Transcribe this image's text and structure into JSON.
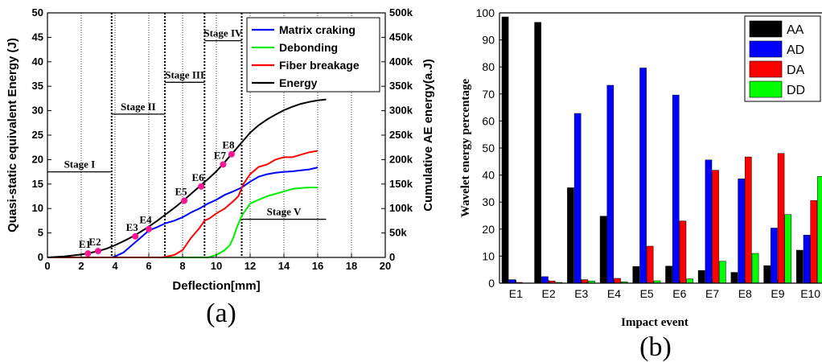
{
  "figure": {
    "panel_a_label": "(a)",
    "panel_b_label": "(b)"
  },
  "chart_data": [
    {
      "type": "line",
      "panel": "(a)",
      "xlabel": "Deflection[mm]",
      "ylabel": "Quasi-static equivalent Energy (J)",
      "y2label": "Cumulative AE energy(a.J)",
      "xlim": [
        0,
        20
      ],
      "ylim": [
        0,
        50
      ],
      "y2lim": [
        0,
        500000
      ],
      "x_ticks": [
        "0",
        "2",
        "4",
        "6",
        "8",
        "10",
        "12",
        "14",
        "16",
        "18",
        "20"
      ],
      "y_ticks": [
        "0",
        "5",
        "10",
        "15",
        "20",
        "25",
        "30",
        "35",
        "40",
        "45",
        "50"
      ],
      "y2_ticks": [
        "0",
        "50k",
        "100k",
        "150k",
        "200k",
        "250k",
        "300k",
        "350k",
        "400k",
        "450k",
        "500k"
      ],
      "legend_placement": "top-right",
      "series": [
        {
          "name": "Matrix craking",
          "color": "#0000ff",
          "axis": "right",
          "x": [
            0,
            3.8,
            4,
            4.5,
            5,
            5.5,
            6,
            6.5,
            7,
            7.5,
            8,
            8.5,
            9,
            9.5,
            10,
            10.5,
            11,
            11.5,
            12,
            12.5,
            13,
            13.5,
            14,
            14.5,
            15,
            15.5,
            16
          ],
          "y": [
            0,
            0,
            2000,
            10000,
            25000,
            40000,
            55000,
            62000,
            70000,
            75000,
            82000,
            92000,
            100000,
            110000,
            118000,
            128000,
            135000,
            143000,
            155000,
            165000,
            170000,
            173000,
            175000,
            176000,
            178000,
            180000,
            184000
          ]
        },
        {
          "name": "Debonding",
          "color": "#00ee00",
          "axis": "right",
          "x": [
            0,
            9.5,
            10,
            10.5,
            10.8,
            11,
            11.2,
            11.5,
            11.8,
            12,
            12.5,
            13,
            13.5,
            14,
            14.5,
            15,
            15.5,
            16
          ],
          "y": [
            0,
            0,
            5000,
            15000,
            25000,
            40000,
            60000,
            85000,
            100000,
            110000,
            118000,
            125000,
            130000,
            135000,
            140000,
            142000,
            143000,
            143000
          ]
        },
        {
          "name": "Fiber breakage",
          "color": "#ff0000",
          "axis": "right",
          "x": [
            0,
            6.8,
            7.5,
            8,
            8.5,
            9,
            9.3,
            9.6,
            10,
            10.5,
            11,
            11.3,
            11.6,
            12,
            12.5,
            13,
            13.5,
            14,
            14.5,
            15,
            15.5,
            16
          ],
          "y": [
            0,
            0,
            5000,
            15000,
            40000,
            60000,
            75000,
            80000,
            90000,
            100000,
            115000,
            125000,
            150000,
            170000,
            185000,
            190000,
            200000,
            205000,
            205000,
            210000,
            215000,
            218000
          ]
        },
        {
          "name": "Energy",
          "color": "#000000",
          "axis": "left",
          "x": [
            0,
            1,
            2,
            2.5,
            3,
            3.5,
            4,
            4.5,
            5,
            5.5,
            6,
            6.5,
            7,
            7.5,
            8,
            8.5,
            9,
            9.5,
            10,
            10.5,
            11,
            11.5,
            12,
            12.5,
            13,
            13.5,
            14,
            14.5,
            15,
            15.5,
            16,
            16.5
          ],
          "y": [
            0,
            0.2,
            0.6,
            0.9,
            1.3,
            1.8,
            2.5,
            3.3,
            4.2,
            5.2,
            6.3,
            7.5,
            8.8,
            10.1,
            11.5,
            13,
            14.5,
            16,
            17.6,
            19.5,
            21.5,
            23.5,
            25.5,
            27,
            28.2,
            29.2,
            30.1,
            30.8,
            31.4,
            31.8,
            32.1,
            32.3
          ]
        }
      ],
      "events": [
        {
          "label": "E1",
          "x": 2.4,
          "y": 0.8
        },
        {
          "label": "E2",
          "x": 3.0,
          "y": 1.3
        },
        {
          "label": "E3",
          "x": 5.2,
          "y": 4.3
        },
        {
          "label": "E4",
          "x": 6.0,
          "y": 5.8
        },
        {
          "label": "E5",
          "x": 8.1,
          "y": 11.6
        },
        {
          "label": "E6",
          "x": 9.1,
          "y": 14.5
        },
        {
          "label": "E7",
          "x": 10.4,
          "y": 19.0
        },
        {
          "label": "E8",
          "x": 10.9,
          "y": 21.1
        }
      ],
      "stage_boundaries": [
        3.8,
        6.95,
        9.3,
        11.5
      ],
      "stages": [
        {
          "label": "Stage I",
          "x1": 0,
          "x2": 3.8,
          "y": 17.5
        },
        {
          "label": "Stage II",
          "x1": 3.8,
          "x2": 6.95,
          "y": 29.3
        },
        {
          "label": "Stage III",
          "x1": 6.95,
          "x2": 9.3,
          "y": 35.8
        },
        {
          "label": "Stage IV",
          "x1": 9.3,
          "x2": 11.5,
          "y": 44.3
        },
        {
          "label": "Stage V",
          "x1": 11.5,
          "x2": 16.5,
          "y": 7.8
        }
      ]
    },
    {
      "type": "bar",
      "panel": "(b)",
      "xlabel": "Impact event",
      "ylabel": "Wavelet energy percentage",
      "ylim": [
        0,
        100
      ],
      "y_ticks": [
        "0",
        "10",
        "20",
        "30",
        "40",
        "50",
        "60",
        "70",
        "80",
        "90",
        "100"
      ],
      "categories": [
        "E1",
        "E2",
        "E3",
        "E4",
        "E5",
        "E6",
        "E7",
        "E8",
        "E9",
        "E10"
      ],
      "legend_placement": "top-right",
      "series": [
        {
          "name": "AA",
          "color": "#000000",
          "values": [
            98.5,
            96.5,
            35.3,
            24.8,
            6.2,
            6.3,
            4.7,
            4.0,
            6.5,
            12.2
          ]
        },
        {
          "name": "AD",
          "color": "#0000ff",
          "values": [
            1.3,
            2.4,
            62.8,
            73.2,
            79.6,
            69.6,
            45.6,
            38.6,
            20.4,
            17.8
          ]
        },
        {
          "name": "DA",
          "color": "#ff0000",
          "values": [
            0.3,
            0.8,
            1.3,
            1.8,
            13.7,
            23.0,
            41.8,
            46.7,
            48.0,
            30.6
          ]
        },
        {
          "name": "DD",
          "color": "#00ff00",
          "values": [
            0.1,
            0.3,
            0.8,
            0.5,
            0.9,
            1.6,
            8.1,
            11.0,
            25.4,
            39.5
          ]
        }
      ]
    }
  ]
}
